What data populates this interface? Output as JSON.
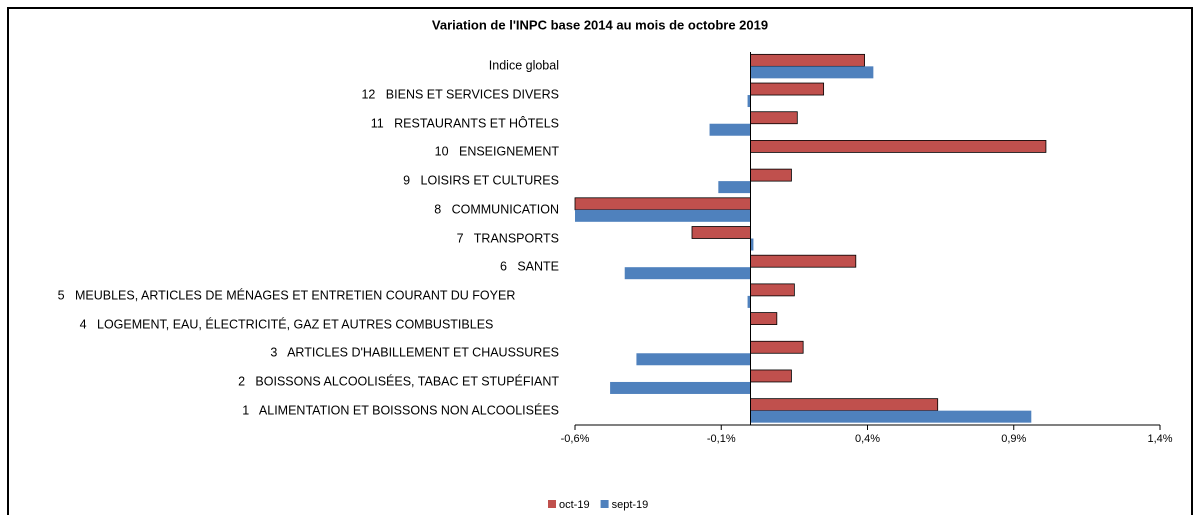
{
  "chart_data": {
    "type": "barh",
    "title": "Variation de l'INPC base 2014 au mois de octobre 2019",
    "categories": [
      "1   ALIMENTATION ET BOISSONS NON ALCOOLISÉES",
      "2   BOISSONS ALCOOLISÉES, TABAC ET STUPÉFIANT",
      "3   ARTICLES D'HABILLEMENT ET CHAUSSURES",
      "4   LOGEMENT, EAU, ÉLECTRICITÉ, GAZ ET AUTRES COMBUSTIBLES",
      "5   MEUBLES, ARTICLES DE MÉNAGES ET ENTRETIEN COURANT DU FOYER",
      "6   SANTE",
      "7   TRANSPORTS",
      "8   COMMUNICATION",
      "9   LOISIRS ET CULTURES",
      "10   ENSEIGNEMENT",
      "11   RESTAURANTS ET HÔTELS",
      "12   BIENS ET SERVICES DIVERS",
      "Indice global"
    ],
    "series": [
      {
        "name": "oct-19",
        "color": "#c0504d",
        "values": [
          0.64,
          0.14,
          0.18,
          0.09,
          0.15,
          0.36,
          -0.2,
          -0.6,
          0.14,
          1.01,
          0.16,
          0.25,
          0.39
        ]
      },
      {
        "name": "sept-19",
        "color": "#4f81bd",
        "values": [
          0.96,
          -0.48,
          -0.39,
          0,
          -0.01,
          -0.43,
          0.01,
          -0.6,
          -0.11,
          0,
          -0.14,
          -0.01,
          0.42
        ]
      }
    ],
    "xlim": [
      -0.6,
      1.4
    ],
    "xticks": [
      {
        "value": -0.6,
        "label": "-0,6%"
      },
      {
        "value": -0.1,
        "label": "-0,1%"
      },
      {
        "value": 0.4,
        "label": "0,4%"
      },
      {
        "value": 0.9,
        "label": "0,9%"
      },
      {
        "value": 1.4,
        "label": "1,4%"
      }
    ],
    "legend": "bottom"
  }
}
